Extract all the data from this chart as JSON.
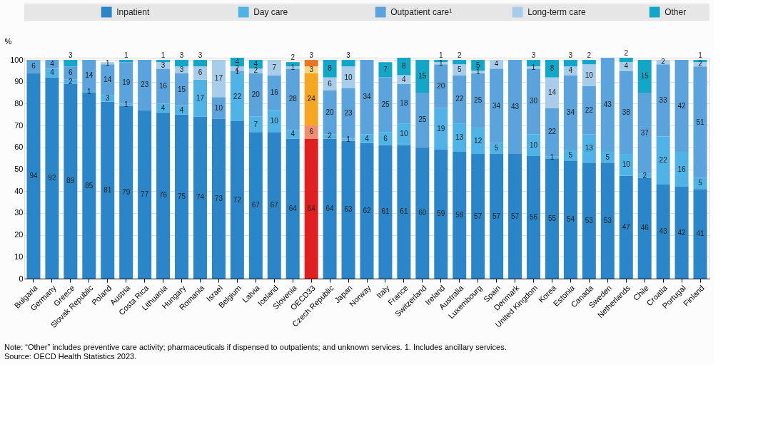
{
  "chart_data": {
    "type": "bar",
    "stacked": true,
    "ylabel": "%",
    "categories": [
      "Bulgaria",
      "Germany",
      "Greece",
      "Slovak Republic",
      "Poland",
      "Austria",
      "Costa Rica",
      "Lithuania",
      "Hungary",
      "Romania",
      "Israel",
      "Belgium",
      "Latvia",
      "Iceland",
      "Slovenia",
      "OECD33",
      "Czech Republic",
      "Japan",
      "Norway",
      "Italy",
      "France",
      "Switzerland",
      "Ireland",
      "Australia",
      "Luxembourg",
      "Spain",
      "Denmark",
      "United Kingdom",
      "Korea",
      "Estonia",
      "Canada",
      "Sweden",
      "Netherlands",
      "Chile",
      "Croatia",
      "Portugal",
      "Finland"
    ],
    "series": [
      {
        "name": "Inpatient",
        "color": "#2a86c8",
        "colors": [
          "#2a86c8",
          "#2a86c8",
          "#2a86c8",
          "#2a86c8",
          "#2a86c8",
          "#2a86c8",
          "#2a86c8",
          "#2a86c8",
          "#2a86c8",
          "#2a86c8",
          "#2a86c8",
          "#2a86c8",
          "#2a86c8",
          "#2a86c8",
          "#2a86c8",
          "#e02020",
          "#2a86c8",
          "#2a86c8",
          "#2a86c8",
          "#2a86c8",
          "#2a86c8",
          "#2a86c8",
          "#2a86c8",
          "#2a86c8",
          "#2a86c8",
          "#2a86c8",
          "#2a86c8",
          "#2a86c8",
          "#2a86c8",
          "#2a86c8",
          "#2a86c8",
          "#2a86c8",
          "#2a86c8",
          "#2a86c8",
          "#2a86c8",
          "#2a86c8",
          "#2a86c8"
        ],
        "values": [
          94,
          92,
          89,
          85,
          81,
          79,
          77,
          76,
          75,
          74,
          73,
          72,
          67,
          67,
          64,
          64,
          64,
          63,
          62,
          61,
          61,
          60,
          59,
          58,
          57,
          57,
          57,
          56,
          55,
          54,
          53,
          53,
          47,
          46,
          43,
          42,
          41
        ]
      },
      {
        "name": "Day care",
        "color": "#4fb3e8",
        "colors": [
          "#4fb3e8",
          "#4fb3e8",
          "#4fb3e8",
          "#4fb3e8",
          "#4fb3e8",
          "#4fb3e8",
          "#4fb3e8",
          "#4fb3e8",
          "#4fb3e8",
          "#4fb3e8",
          "#4fb3e8",
          "#4fb3e8",
          "#4fb3e8",
          "#4fb3e8",
          "#4fb3e8",
          "#f08c70",
          "#4fb3e8",
          "#4fb3e8",
          "#4fb3e8",
          "#4fb3e8",
          "#4fb3e8",
          "#4fb3e8",
          "#4fb3e8",
          "#4fb3e8",
          "#4fb3e8",
          "#4fb3e8",
          "#4fb3e8",
          "#4fb3e8",
          "#4fb3e8",
          "#4fb3e8",
          "#4fb3e8",
          "#4fb3e8",
          "#4fb3e8",
          "#4fb3e8",
          "#4fb3e8",
          "#4fb3e8",
          "#4fb3e8"
        ],
        "values": [
          null,
          4,
          2,
          1,
          3,
          1,
          null,
          4,
          4,
          17,
          null,
          22,
          7,
          10,
          4,
          6,
          2,
          1,
          4,
          6,
          10,
          null,
          19,
          13,
          12,
          5,
          null,
          10,
          1,
          5,
          13,
          5,
          10,
          2,
          22,
          16,
          5
        ]
      },
      {
        "name": "Outpatient care¹",
        "color": "#5aa3dc",
        "colors": [
          "#5aa3dc",
          "#5aa3dc",
          "#5aa3dc",
          "#5aa3dc",
          "#5aa3dc",
          "#5aa3dc",
          "#5aa3dc",
          "#5aa3dc",
          "#5aa3dc",
          "#5aa3dc",
          "#5aa3dc",
          "#5aa3dc",
          "#5aa3dc",
          "#5aa3dc",
          "#5aa3dc",
          "#f5a623",
          "#5aa3dc",
          "#5aa3dc",
          "#5aa3dc",
          "#5aa3dc",
          "#5aa3dc",
          "#5aa3dc",
          "#5aa3dc",
          "#5aa3dc",
          "#5aa3dc",
          "#5aa3dc",
          "#5aa3dc",
          "#5aa3dc",
          "#5aa3dc",
          "#5aa3dc",
          "#5aa3dc",
          "#5aa3dc",
          "#5aa3dc",
          "#5aa3dc",
          "#5aa3dc",
          "#5aa3dc",
          "#5aa3dc"
        ],
        "values": [
          6,
          4,
          6,
          14,
          14,
          19,
          23,
          16,
          15,
          null,
          10,
          1,
          20,
          16,
          28,
          24,
          20,
          23,
          34,
          25,
          18,
          25,
          20,
          22,
          25,
          34,
          43,
          30,
          22,
          34,
          22,
          43,
          38,
          37,
          33,
          42,
          51
        ]
      },
      {
        "name": "Long-term care",
        "color": "#a8cdea",
        "colors": [
          "#a8cdea",
          "#a8cdea",
          "#a8cdea",
          "#a8cdea",
          "#a8cdea",
          "#a8cdea",
          "#a8cdea",
          "#a8cdea",
          "#a8cdea",
          "#a8cdea",
          "#a8cdea",
          "#a8cdea",
          "#a8cdea",
          "#a8cdea",
          "#a8cdea",
          "#fbd580",
          "#a8cdea",
          "#a8cdea",
          "#a8cdea",
          "#a8cdea",
          "#a8cdea",
          "#a8cdea",
          "#a8cdea",
          "#a8cdea",
          "#a8cdea",
          "#a8cdea",
          "#a8cdea",
          "#a8cdea",
          "#a8cdea",
          "#a8cdea",
          "#a8cdea",
          "#a8cdea",
          "#a8cdea",
          "#a8cdea",
          "#a8cdea",
          "#a8cdea",
          "#a8cdea"
        ],
        "values": [
          null,
          null,
          null,
          null,
          1,
          null,
          null,
          3,
          3,
          6,
          17,
          2,
          2,
          7,
          1,
          3,
          6,
          10,
          null,
          null,
          4,
          null,
          1,
          5,
          1,
          4,
          null,
          1,
          14,
          4,
          10,
          null,
          4,
          null,
          2,
          null,
          2
        ]
      },
      {
        "name": "Other",
        "color": "#12a7c9",
        "colors": [
          "#12a7c9",
          "#12a7c9",
          "#12a7c9",
          "#12a7c9",
          "#12a7c9",
          "#12a7c9",
          "#12a7c9",
          "#12a7c9",
          "#12a7c9",
          "#12a7c9",
          "#12a7c9",
          "#12a7c9",
          "#12a7c9",
          "#12a7c9",
          "#12a7c9",
          "#e87722",
          "#12a7c9",
          "#12a7c9",
          "#12a7c9",
          "#12a7c9",
          "#12a7c9",
          "#12a7c9",
          "#12a7c9",
          "#12a7c9",
          "#12a7c9",
          "#12a7c9",
          "#12a7c9",
          "#12a7c9",
          "#12a7c9",
          "#12a7c9",
          "#12a7c9",
          "#12a7c9",
          "#12a7c9",
          "#12a7c9",
          "#12a7c9",
          "#12a7c9",
          "#12a7c9"
        ],
        "values": [
          null,
          null,
          3,
          null,
          null,
          1,
          null,
          1,
          3,
          3,
          null,
          4,
          4,
          null,
          2,
          3,
          8,
          3,
          null,
          7,
          8,
          15,
          1,
          2,
          5,
          null,
          null,
          3,
          8,
          3,
          2,
          null,
          2,
          15,
          null,
          null,
          1
        ]
      }
    ],
    "ylim": [
      0,
      101
    ],
    "yticks": [
      0,
      10,
      20,
      30,
      40,
      50,
      60,
      70,
      80,
      90,
      100
    ],
    "grid": "y",
    "legend": "top",
    "data_labels": true,
    "annotations": [
      "Note: “Other” includes preventive care activity; pharmaceuticals if dispensed to outpatients; and unknown services. 1. Includes ancillary services.",
      "Source: OECD Health Statistics 2023."
    ]
  }
}
